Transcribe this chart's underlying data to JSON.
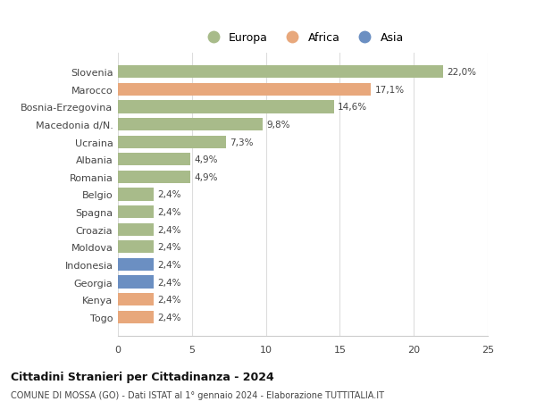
{
  "categories": [
    "Togo",
    "Kenya",
    "Georgia",
    "Indonesia",
    "Moldova",
    "Croazia",
    "Spagna",
    "Belgio",
    "Romania",
    "Albania",
    "Ucraina",
    "Macedonia d/N.",
    "Bosnia-Erzegovina",
    "Marocco",
    "Slovenia"
  ],
  "values": [
    2.4,
    2.4,
    2.4,
    2.4,
    2.4,
    2.4,
    2.4,
    2.4,
    4.9,
    4.9,
    7.3,
    9.8,
    14.6,
    17.1,
    22.0
  ],
  "colors": [
    "#e8a87c",
    "#e8a87c",
    "#6b8fc2",
    "#6b8fc2",
    "#a8bb8a",
    "#a8bb8a",
    "#a8bb8a",
    "#a8bb8a",
    "#a8bb8a",
    "#a8bb8a",
    "#a8bb8a",
    "#a8bb8a",
    "#a8bb8a",
    "#e8a87c",
    "#a8bb8a"
  ],
  "legend_labels": [
    "Europa",
    "Africa",
    "Asia"
  ],
  "legend_colors": [
    "#a8bb8a",
    "#e8a87c",
    "#6b8fc2"
  ],
  "title": "Cittadini Stranieri per Cittadinanza - 2024",
  "subtitle": "COMUNE DI MOSSA (GO) - Dati ISTAT al 1° gennaio 2024 - Elaborazione TUTTITALIA.IT",
  "xlim": [
    0,
    25
  ],
  "xticks": [
    0,
    5,
    10,
    15,
    20,
    25
  ],
  "background_color": "#ffffff",
  "bar_height": 0.72
}
